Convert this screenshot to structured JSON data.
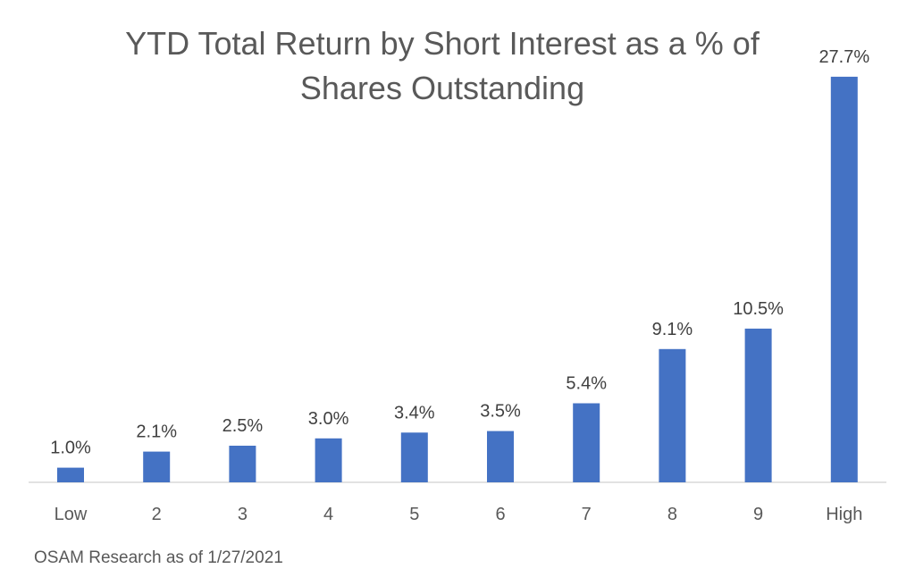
{
  "chart_data": {
    "type": "bar",
    "title_lines": [
      "YTD Total Return by Short Interest as a % of",
      "Shares Outstanding"
    ],
    "categories": [
      "Low",
      "2",
      "3",
      "4",
      "5",
      "6",
      "7",
      "8",
      "9",
      "High"
    ],
    "values": [
      1.0,
      2.1,
      2.5,
      3.0,
      3.4,
      3.5,
      5.4,
      9.1,
      10.5,
      27.7
    ],
    "data_labels": [
      "1.0%",
      "2.1%",
      "2.5%",
      "3.0%",
      "3.4%",
      "3.5%",
      "5.4%",
      "9.1%",
      "10.5%",
      "27.7%"
    ],
    "bar_color": "#4472C4",
    "axis_color": "#D9D9D9",
    "text_color": "#595959",
    "label_color": "#404040",
    "ylim": [
      0,
      28
    ],
    "grid": false,
    "legend": "none"
  },
  "footer": {
    "source": "OSAM Research as of 1/27/2021"
  }
}
